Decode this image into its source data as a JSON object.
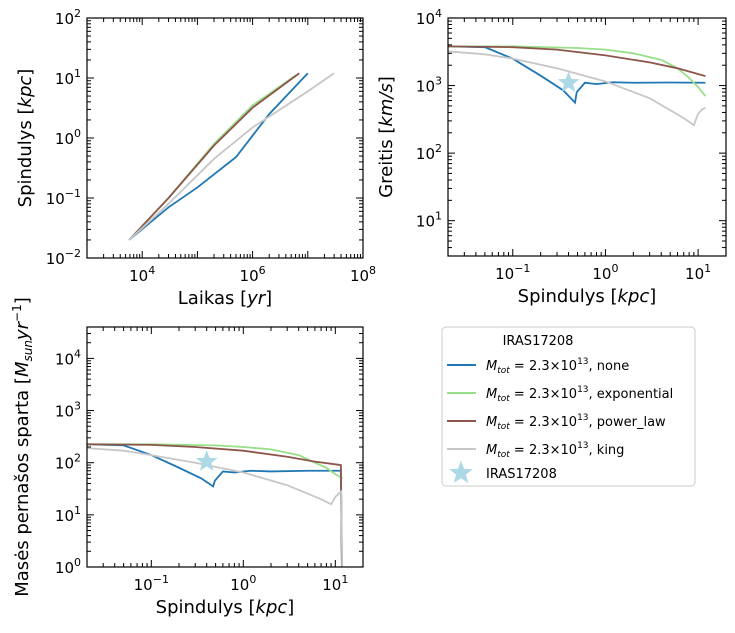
{
  "colors": {
    "none": "#1f77b4",
    "exponential": "#98df8a",
    "power_law": "#8c564b",
    "king": "#c7c7c7",
    "star": "#add8e6"
  },
  "chart_data": [
    {
      "type": "line",
      "panel": "top-left",
      "xlabel": "Laikas [yr]",
      "ylabel": "Spindulys [kpc]",
      "xscale": "log",
      "yscale": "log",
      "xlim": [
        1000,
        100000000
      ],
      "ylim": [
        0.01,
        100
      ],
      "x_ticks": [
        "10^4",
        "10^6",
        "10^8"
      ],
      "y_ticks": [
        "10^-2",
        "10^-1",
        "10^0",
        "10^1",
        "10^2"
      ],
      "series": [
        {
          "name": "none",
          "points": [
            [
              5800,
              0.02
            ],
            [
              30000,
              0.07
            ],
            [
              100000,
              0.15
            ],
            [
              500000,
              0.48
            ],
            [
              2000000,
              2.5
            ],
            [
              10000000,
              12
            ]
          ]
        },
        {
          "name": "exponential",
          "points": [
            [
              5800,
              0.02
            ],
            [
              30000,
              0.1
            ],
            [
              200000,
              0.8
            ],
            [
              1000000,
              3.5
            ],
            [
              6000000,
              11
            ]
          ]
        },
        {
          "name": "power_law",
          "points": [
            [
              5800,
              0.02
            ],
            [
              30000,
              0.1
            ],
            [
              200000,
              0.75
            ],
            [
              1000000,
              3.2
            ],
            [
              7000000,
              12
            ]
          ]
        },
        {
          "name": "king",
          "points": [
            [
              5800,
              0.02
            ],
            [
              30000,
              0.08
            ],
            [
              200000,
              0.45
            ],
            [
              1000000,
              1.5
            ],
            [
              10000000,
              6
            ],
            [
              30000000,
              12
            ]
          ]
        }
      ]
    },
    {
      "type": "line",
      "panel": "top-right",
      "xlabel": "Spindulys [kpc]",
      "ylabel": "Greitis [km/s]",
      "xscale": "log",
      "yscale": "log",
      "xlim": [
        0.02,
        20
      ],
      "ylim": [
        3,
        10000
      ],
      "x_ticks": [
        "10^-1",
        "10^0",
        "10^1"
      ],
      "y_ticks": [
        "10^1",
        "10^2",
        "10^3",
        "10^4"
      ],
      "star_point": [
        0.4,
        1100
      ],
      "series": [
        {
          "name": "none",
          "points": [
            [
              0.02,
              3800
            ],
            [
              0.05,
              3700
            ],
            [
              0.1,
              2500
            ],
            [
              0.2,
              1400
            ],
            [
              0.35,
              850
            ],
            [
              0.47,
              560
            ],
            [
              0.49,
              800
            ],
            [
              0.6,
              1100
            ],
            [
              0.8,
              1050
            ],
            [
              1.2,
              1120
            ],
            [
              2,
              1100
            ],
            [
              5,
              1110
            ],
            [
              12,
              1100
            ]
          ]
        },
        {
          "name": "exponential",
          "points": [
            [
              0.02,
              3800
            ],
            [
              0.1,
              3800
            ],
            [
              0.5,
              3600
            ],
            [
              1,
              3400
            ],
            [
              2,
              3000
            ],
            [
              4,
              2400
            ],
            [
              6,
              1800
            ],
            [
              8,
              1300
            ],
            [
              10,
              950
            ],
            [
              12,
              700
            ]
          ]
        },
        {
          "name": "power_law",
          "points": [
            [
              0.02,
              3800
            ],
            [
              0.1,
              3700
            ],
            [
              0.3,
              3400
            ],
            [
              1,
              2800
            ],
            [
              3,
              2200
            ],
            [
              6,
              1800
            ],
            [
              12,
              1380
            ]
          ]
        },
        {
          "name": "king",
          "points": [
            [
              0.02,
              3200
            ],
            [
              0.05,
              2900
            ],
            [
              0.1,
              2500
            ],
            [
              0.3,
              1800
            ],
            [
              1,
              1150
            ],
            [
              3,
              650
            ],
            [
              7,
              330
            ],
            [
              9,
              260
            ],
            [
              10,
              380
            ],
            [
              11,
              440
            ],
            [
              12,
              470
            ]
          ]
        }
      ]
    },
    {
      "type": "line",
      "panel": "bottom-left",
      "xlabel": "Spindulys [kpc]",
      "ylabel": "Masės pernašos sparta [M_sun yr^-1]",
      "xscale": "log",
      "yscale": "log",
      "xlim": [
        0.02,
        20
      ],
      "ylim": [
        1,
        40000
      ],
      "x_ticks": [
        "10^-1",
        "10^0",
        "10^1"
      ],
      "y_ticks": [
        "10^0",
        "10^1",
        "10^2",
        "10^3",
        "10^4"
      ],
      "star_point": [
        0.4,
        105
      ],
      "series": [
        {
          "name": "none",
          "points": [
            [
              0.02,
              225
            ],
            [
              0.05,
              215
            ],
            [
              0.1,
              140
            ],
            [
              0.2,
              80
            ],
            [
              0.35,
              50
            ],
            [
              0.47,
              35
            ],
            [
              0.49,
              45
            ],
            [
              0.6,
              68
            ],
            [
              0.8,
              65
            ],
            [
              1.2,
              70
            ],
            [
              2,
              68
            ],
            [
              5,
              70
            ],
            [
              11.5,
              70
            ],
            [
              11.8,
              1
            ]
          ]
        },
        {
          "name": "exponential",
          "points": [
            [
              0.02,
              225
            ],
            [
              0.1,
              225
            ],
            [
              0.5,
              215
            ],
            [
              1,
              200
            ],
            [
              2,
              180
            ],
            [
              4,
              140
            ],
            [
              6,
              100
            ],
            [
              8,
              80
            ],
            [
              10,
              60
            ],
            [
              12,
              50
            ]
          ]
        },
        {
          "name": "power_law",
          "points": [
            [
              0.02,
              225
            ],
            [
              0.1,
              220
            ],
            [
              0.3,
              200
            ],
            [
              1,
              170
            ],
            [
              3,
              130
            ],
            [
              6,
              105
            ],
            [
              11.5,
              90
            ],
            [
              11.8,
              1
            ]
          ]
        },
        {
          "name": "king",
          "points": [
            [
              0.02,
              190
            ],
            [
              0.05,
              170
            ],
            [
              0.1,
              140
            ],
            [
              0.3,
              100
            ],
            [
              1,
              65
            ],
            [
              3,
              37
            ],
            [
              7,
              20
            ],
            [
              9,
              16
            ],
            [
              10,
              22
            ],
            [
              11,
              26
            ],
            [
              11.6,
              28
            ],
            [
              11.9,
              1
            ]
          ]
        }
      ]
    }
  ],
  "legend": {
    "title": "IRAS17208",
    "entries": [
      {
        "key": "none",
        "mass": "2.3×10",
        "exp": "13",
        "label": ", none"
      },
      {
        "key": "exponential",
        "mass": "2.3×10",
        "exp": "13",
        "label": ", exponential"
      },
      {
        "key": "power_law",
        "mass": "2.3×10",
        "exp": "13",
        "label": ", power_law"
      },
      {
        "key": "king",
        "mass": "2.3×10",
        "exp": "13",
        "label": ", king"
      }
    ],
    "star_label": "IRAS17208"
  }
}
